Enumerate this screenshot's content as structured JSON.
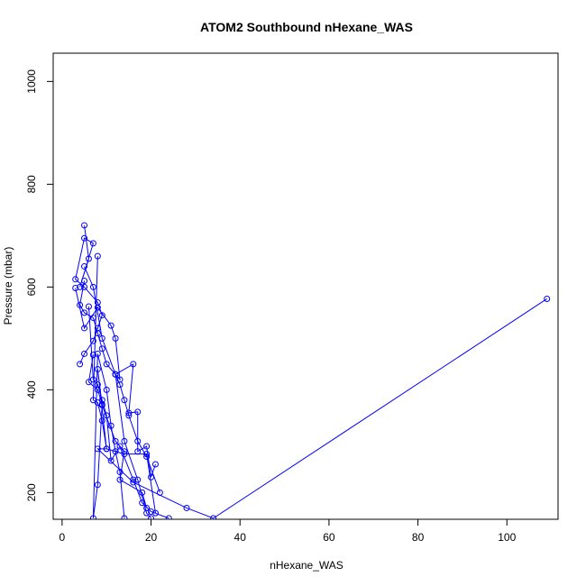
{
  "chart_data": {
    "type": "line",
    "title": "ATOM2 Southbound nHexane_WAS",
    "xlabel": "nHexane_WAS",
    "ylabel": "Pressure (mbar)",
    "xlim": [
      -2,
      111.5
    ],
    "ylim": [
      1055,
      148
    ],
    "y_reversed": true,
    "x_ticks": [
      0,
      20,
      40,
      60,
      80,
      100
    ],
    "y_ticks": [
      200,
      400,
      600,
      800,
      1000
    ],
    "grid": false,
    "legend": "none",
    "colors": {
      "series": "#0000ff"
    },
    "markers": "open-circle",
    "series": [
      {
        "x": [
          5,
          6,
          4,
          7,
          5,
          3,
          5,
          8,
          9,
          8,
          7,
          5,
          4
        ],
        "y": [
          720,
          655,
          600,
          685,
          695,
          615,
          600,
          570,
          545,
          520,
          495,
          470,
          450
        ]
      },
      {
        "x": [
          5,
          4,
          5,
          7,
          8,
          9,
          10,
          12,
          13,
          14,
          15,
          17,
          19,
          22
        ],
        "y": [
          612,
          565,
          550,
          540,
          510,
          480,
          450,
          430,
          410,
          380,
          350,
          300,
          270,
          200
        ]
      },
      {
        "x": [
          3,
          5,
          8,
          11,
          12,
          13,
          12,
          16,
          15,
          17,
          17,
          19,
          20,
          21
        ],
        "y": [
          598,
          520,
          560,
          525,
          500,
          420,
          430,
          450,
          355,
          357,
          280,
          290,
          230,
          255
        ]
      },
      {
        "x": [
          8,
          7,
          8,
          9,
          10,
          8,
          9,
          12,
          14,
          13,
          18,
          19
        ],
        "y": [
          660,
          380,
          375,
          340,
          285,
          440,
          370,
          300,
          280,
          225,
          200,
          170
        ]
      },
      {
        "x": [
          6,
          7,
          8,
          9,
          10,
          11,
          13,
          16,
          18,
          20,
          24
        ],
        "y": [
          562,
          420,
          410,
          380,
          350,
          262,
          290,
          225,
          180,
          163,
          150
        ]
      },
      {
        "x": [
          109,
          34,
          28,
          16,
          8,
          10,
          14,
          19,
          21
        ],
        "y": [
          577,
          150,
          170,
          220,
          285,
          285,
          275,
          275,
          160
        ]
      },
      {
        "x": [
          7,
          6,
          8,
          9,
          8,
          7,
          8,
          10,
          11,
          12,
          13,
          14
        ],
        "y": [
          468,
          415,
          400,
          372,
          215,
          150,
          470,
          400,
          330,
          280,
          240,
          150
        ]
      },
      {
        "x": [
          5,
          7,
          9,
          12,
          14,
          17,
          19,
          20
        ],
        "y": [
          640,
          600,
          500,
          430,
          300,
          225,
          160,
          150
        ]
      }
    ]
  }
}
